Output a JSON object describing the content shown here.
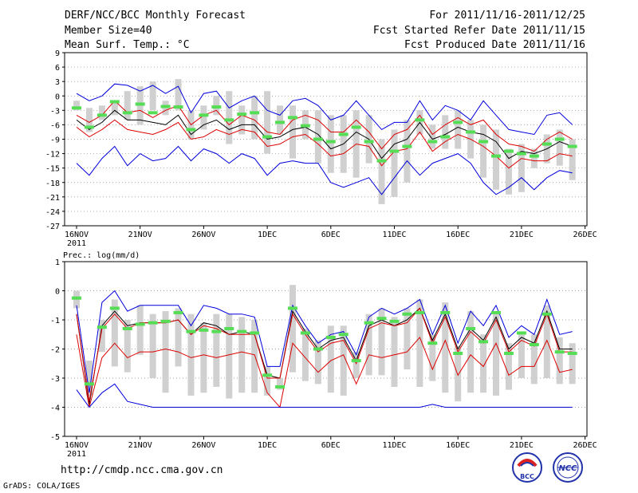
{
  "header": {
    "title": "DERF/NCC/BCC Monthly Forecast",
    "member_size": "Member Size=40",
    "variable1": "Mean Surf. Temp.: °C",
    "period": "For 2011/11/16-2011/12/25",
    "start_date": "Fcst Started Refer Date 2011/11/15",
    "produced_date": "Fcst Produced Date 2011/11/16"
  },
  "footer": {
    "url": "http://cmdp.ncc.cma.gov.cn",
    "credit": "GrADS: COLA/IGES",
    "logo_left": "BCC",
    "logo_right": "NCC"
  },
  "colors": {
    "max": "#0000dd",
    "min": "#0000dd",
    "upper": "#dd0000",
    "lower": "#dd0000",
    "mean": "#000000",
    "bar": "#d0d0d0",
    "mark": "#55dd55",
    "grid": "#888888"
  },
  "chart_data": [
    {
      "type": "line",
      "title": "Mean Surf. Temp.: °C",
      "ylim": [
        -27,
        9
      ],
      "yticks": [
        9,
        6,
        3,
        0,
        -3,
        -6,
        -9,
        -12,
        -15,
        -18,
        -21,
        -24,
        -27
      ],
      "xtick_labels": [
        "16NOV",
        "21NOV",
        "26NOV",
        "1DEC",
        "6DEC",
        "11DEC",
        "16DEC",
        "21DEC",
        "26DEC"
      ],
      "xtick_days": [
        0,
        5,
        10,
        15,
        20,
        25,
        30,
        35,
        40
      ],
      "year_label": "2011",
      "days": [
        0,
        1,
        2,
        3,
        4,
        5,
        6,
        7,
        8,
        9,
        10,
        11,
        12,
        13,
        14,
        15,
        16,
        17,
        18,
        19,
        20,
        21,
        22,
        23,
        24,
        25,
        26,
        27,
        28,
        29,
        30,
        31,
        32,
        33,
        34,
        35,
        36,
        37,
        38,
        39
      ],
      "series": [
        {
          "name": "max",
          "values": [
            0.5,
            -1,
            0,
            2.5,
            2.2,
            1,
            2.2,
            0.5,
            2,
            -3.5,
            0.5,
            1,
            -2.5,
            -1,
            0,
            -3,
            -4,
            -1,
            -0.5,
            -2,
            -5,
            -4,
            -1,
            -4,
            -7,
            -5.5,
            -5.5,
            -1,
            -5,
            -2,
            -3,
            -5,
            -1,
            -4,
            -7,
            -7.5,
            -8,
            -4,
            -3.5,
            -6
          ]
        },
        {
          "name": "upper",
          "values": [
            -4,
            -5.5,
            -4,
            -1,
            -3.5,
            -3,
            -4.5,
            -3,
            -2,
            -6,
            -4,
            -3,
            -6,
            -4,
            -5,
            -7.5,
            -8,
            -5,
            -4,
            -5,
            -7.5,
            -7.5,
            -5,
            -7.5,
            -11,
            -8,
            -7,
            -4,
            -8,
            -6,
            -4.5,
            -6,
            -5,
            -8,
            -10,
            -10.5,
            -11.5,
            -9,
            -7.5,
            -9
          ]
        },
        {
          "name": "mean",
          "values": [
            -5,
            -7,
            -5.5,
            -3,
            -5,
            -5,
            -5.5,
            -6,
            -4,
            -8,
            -6,
            -5,
            -7,
            -6,
            -6,
            -9,
            -8.5,
            -7,
            -6.5,
            -8,
            -11,
            -10,
            -7.5,
            -9,
            -13,
            -10,
            -9,
            -5.5,
            -9,
            -8,
            -6.5,
            -7.5,
            -8,
            -9.5,
            -13,
            -11.5,
            -12,
            -11,
            -9.5,
            -10.5
          ]
        },
        {
          "name": "lower",
          "values": [
            -6.5,
            -8.5,
            -7,
            -5,
            -7,
            -7.5,
            -8,
            -7,
            -5.5,
            -9,
            -8.5,
            -7,
            -8,
            -7,
            -7.5,
            -10.5,
            -10,
            -8.5,
            -8,
            -10,
            -12.5,
            -12,
            -10,
            -10.5,
            -14.5,
            -11.5,
            -11,
            -7.5,
            -11.5,
            -9.5,
            -8,
            -9,
            -10.5,
            -12.5,
            -15,
            -13,
            -13.5,
            -13.5,
            -12,
            -12.5
          ]
        },
        {
          "name": "min",
          "values": [
            -14,
            -16.5,
            -13,
            -10.5,
            -14.5,
            -12,
            -13.5,
            -13,
            -10.5,
            -13.5,
            -11,
            -12,
            -14,
            -12,
            -13,
            -16.5,
            -14,
            -13.5,
            -14,
            -14,
            -18,
            -19,
            -18,
            -17,
            -20.5,
            -17,
            -13.5,
            -16.5,
            -14,
            -13,
            -12,
            -14,
            -18,
            -20.5,
            -19,
            -17,
            -19.5,
            -17,
            -15.5,
            -16
          ]
        }
      ],
      "bars": [
        [
          -3,
          -1
        ],
        [
          -7.5,
          -2.5
        ],
        [
          -5,
          -2
        ],
        [
          -4,
          -1
        ],
        [
          -5,
          1
        ],
        [
          -6,
          2
        ],
        [
          -3,
          3
        ],
        [
          -4,
          -1
        ],
        [
          -3,
          3.5
        ],
        [
          -9,
          -3
        ],
        [
          -7,
          -2
        ],
        [
          -4,
          0
        ],
        [
          -10,
          1
        ],
        [
          -8,
          -2
        ],
        [
          -9,
          0
        ],
        [
          -12,
          1
        ],
        [
          -8,
          -2
        ],
        [
          -13,
          -2
        ],
        [
          -9,
          -3
        ],
        [
          -14,
          -3
        ],
        [
          -16,
          -4
        ],
        [
          -16,
          -4
        ],
        [
          -17,
          -3
        ],
        [
          -14,
          -4
        ],
        [
          -22.5,
          -9
        ],
        [
          -21,
          -7
        ],
        [
          -18,
          -5
        ],
        [
          -8,
          -3
        ],
        [
          -11,
          -6
        ],
        [
          -11,
          -4
        ],
        [
          -11,
          -3
        ],
        [
          -13,
          -5
        ],
        [
          -17,
          -6
        ],
        [
          -19.5,
          -7
        ],
        [
          -20.5,
          -11
        ],
        [
          -20,
          -10
        ],
        [
          -15,
          -11
        ],
        [
          -14,
          -8
        ],
        [
          -14.5,
          -7
        ],
        [
          -17.5,
          -9
        ]
      ],
      "marks": [
        -2.5,
        -6.5,
        -4,
        -1.2,
        -3.5,
        -1.7,
        -3.5,
        -2.2,
        -2.3,
        -7,
        -4,
        -2.3,
        -5,
        -3.8,
        -3.5,
        -8.5,
        -5.5,
        -4.5,
        -6.2,
        -9,
        -9.5,
        -8,
        -6.5,
        -9.5,
        -13.5,
        -11.5,
        -10.5,
        -5,
        -9.5,
        -8.5,
        -5.5,
        -7.5,
        -9.5,
        -12.5,
        -11.5,
        -12,
        -12.5,
        -10,
        -9,
        -10.5
      ]
    },
    {
      "type": "line",
      "title": "Prec.: log(mm/d)",
      "ylim": [
        -5,
        1
      ],
      "yticks": [
        1,
        0,
        -1,
        -2,
        -3,
        -4,
        -5
      ],
      "xtick_labels": [
        "16NOV",
        "21NOV",
        "26NOV",
        "1DEC",
        "6DEC",
        "11DEC",
        "16DEC",
        "21DEC",
        "26DEC"
      ],
      "xtick_days": [
        0,
        5,
        10,
        15,
        20,
        25,
        30,
        35,
        40
      ],
      "year_label": "2011",
      "days": [
        0,
        1,
        2,
        3,
        4,
        5,
        6,
        7,
        8,
        9,
        10,
        11,
        12,
        13,
        14,
        15,
        16,
        17,
        18,
        19,
        20,
        21,
        22,
        23,
        24,
        25,
        26,
        27,
        28,
        29,
        30,
        31,
        32,
        33,
        34,
        35,
        36,
        37,
        38,
        39
      ],
      "series": [
        {
          "name": "max",
          "values": [
            -0.5,
            -3.5,
            -0.4,
            0,
            -0.7,
            -0.5,
            -0.5,
            -0.5,
            -0.5,
            -1.2,
            -0.5,
            -0.6,
            -0.8,
            -0.8,
            -0.9,
            -2.6,
            -2.6,
            -0.5,
            -1.2,
            -1.8,
            -1.5,
            -1.4,
            -2.2,
            -0.9,
            -0.6,
            -0.8,
            -0.6,
            -0.3,
            -1.5,
            -0.5,
            -1.8,
            -0.7,
            -1.2,
            -0.5,
            -1.6,
            -1.2,
            -1.5,
            -0.3,
            -1.5,
            -1.4
          ]
        },
        {
          "name": "mean",
          "values": [
            -0.8,
            -3.9,
            -1.2,
            -0.7,
            -1.2,
            -1.1,
            -1.1,
            -1.1,
            -1,
            -1.5,
            -1.1,
            -1.2,
            -1.5,
            -1.4,
            -1.5,
            -2.9,
            -3,
            -0.7,
            -1.4,
            -2,
            -1.7,
            -1.6,
            -2.4,
            -1.2,
            -1,
            -1.2,
            -1,
            -0.6,
            -1.7,
            -0.8,
            -2,
            -1.3,
            -1.7,
            -0.9,
            -2,
            -1.6,
            -1.8,
            -0.7,
            -2,
            -2
          ]
        },
        {
          "name": "upper",
          "values": [
            -0.8,
            -3.8,
            -1.3,
            -0.8,
            -1.3,
            -1.1,
            -1.1,
            -1.1,
            -1,
            -1.5,
            -1.2,
            -1.3,
            -1.5,
            -1.5,
            -1.5,
            -3,
            -3,
            -0.8,
            -1.5,
            -2.1,
            -1.8,
            -1.7,
            -2.5,
            -1.3,
            -1.1,
            -1.2,
            -1.1,
            -0.6,
            -1.8,
            -0.9,
            -2.1,
            -1.4,
            -1.8,
            -1,
            -2.1,
            -1.7,
            -1.9,
            -0.8,
            -2.1,
            -2.1
          ]
        },
        {
          "name": "lower",
          "values": [
            -1.5,
            -4,
            -2.3,
            -1.8,
            -2.3,
            -2.1,
            -2.1,
            -2,
            -2.1,
            -2.3,
            -2.2,
            -2.3,
            -2.2,
            -2.1,
            -2.2,
            -3.5,
            -4,
            -1.8,
            -2.3,
            -2.8,
            -2.4,
            -2.2,
            -3.2,
            -2.2,
            -2.3,
            -2.2,
            -2.1,
            -1.6,
            -2.7,
            -1.7,
            -2.9,
            -2.2,
            -2.6,
            -1.8,
            -2.9,
            -2.6,
            -2.6,
            -1.7,
            -2.8,
            -2.7
          ]
        },
        {
          "name": "min",
          "values": [
            -3.4,
            -4,
            -3.5,
            -3.2,
            -3.8,
            -3.9,
            -4,
            -4,
            -4,
            -4,
            -4,
            -4,
            -4,
            -4,
            -4,
            -4,
            -4,
            -4,
            -4,
            -4,
            -4,
            -4,
            -4,
            -4,
            -4,
            -4,
            -4,
            -4,
            -3.9,
            -4,
            -4,
            -4,
            -4,
            -4,
            -4,
            -4,
            -4,
            -4,
            -4,
            -4
          ]
        }
      ],
      "bars": [
        [
          -0.6,
          0
        ],
        [
          -3.6,
          -2.4
        ],
        [
          -2.1,
          -1
        ],
        [
          -2.6,
          -0.3
        ],
        [
          -2.8,
          -1
        ],
        [
          -2.2,
          -0.5
        ],
        [
          -3,
          -0.8
        ],
        [
          -3.5,
          -0.7
        ],
        [
          -2.6,
          -0.6
        ],
        [
          -3.6,
          -0.8
        ],
        [
          -3.5,
          -1.1
        ],
        [
          -3.3,
          -0.8
        ],
        [
          -3.7,
          -0.8
        ],
        [
          -3.5,
          -0.9
        ],
        [
          -3.5,
          -1
        ],
        [
          -3.6,
          -2.6
        ],
        [
          -3.4,
          -3
        ],
        [
          -2.8,
          0.2
        ],
        [
          -3.1,
          -1.3
        ],
        [
          -3.2,
          -1.7
        ],
        [
          -3.5,
          -1.2
        ],
        [
          -3.6,
          -1.2
        ],
        [
          -3,
          -2.1
        ],
        [
          -2.9,
          -0.8
        ],
        [
          -2.9,
          -0.6
        ],
        [
          -3.3,
          -0.9
        ],
        [
          -2.7,
          -0.6
        ],
        [
          -3.3,
          -0.3
        ],
        [
          -3.1,
          -1.5
        ],
        [
          -3.5,
          -0.4
        ],
        [
          -3.8,
          -1.9
        ],
        [
          -3.5,
          -0.7
        ],
        [
          -3.5,
          -1.5
        ],
        [
          -3.6,
          -0.7
        ],
        [
          -3.4,
          -1.8
        ],
        [
          -3,
          -1.5
        ],
        [
          -3.2,
          -1.5
        ],
        [
          -3,
          -0.5
        ],
        [
          -3.2,
          -1.6
        ],
        [
          -3.2,
          -1.8
        ]
      ],
      "marks": [
        -0.25,
        -3.2,
        -1.25,
        -0.6,
        -1.3,
        -1.15,
        -1.1,
        -1.05,
        -0.75,
        -1.4,
        -1.35,
        -1.4,
        -1.3,
        -1.4,
        -1.45,
        -2.9,
        -3.3,
        -0.6,
        -1.45,
        -2,
        -1.6,
        -1.5,
        -2.4,
        -1.1,
        -0.95,
        -1.05,
        -0.8,
        -0.75,
        -1.8,
        -0.75,
        -2.15,
        -1.3,
        -1.75,
        -0.75,
        -2.15,
        -1.45,
        -1.85,
        -0.8,
        -2.1,
        -2.15
      ]
    }
  ]
}
